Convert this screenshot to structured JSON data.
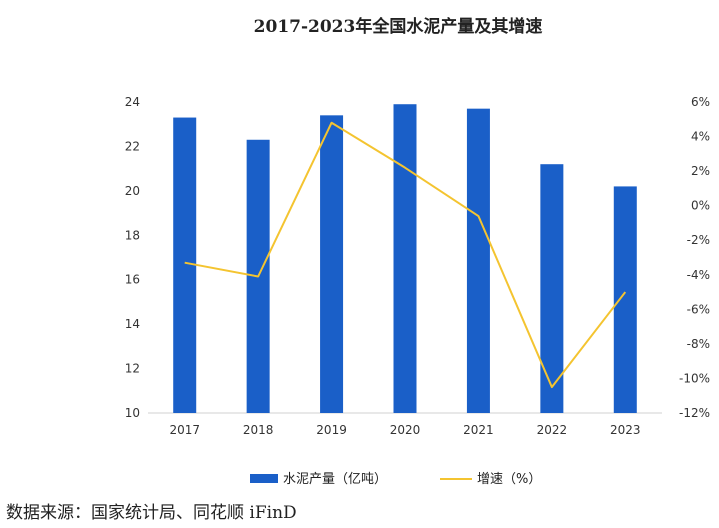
{
  "chart_data": {
    "type": "bar",
    "title": "2017-2023年全国水泥产量及其增速",
    "categories": [
      "2017",
      "2018",
      "2019",
      "2020",
      "2021",
      "2022",
      "2023"
    ],
    "series": [
      {
        "name": "水泥产量（亿吨）",
        "type": "bar",
        "axis": "left",
        "color": "#1a5fc8",
        "values": [
          23.3,
          22.3,
          23.4,
          23.9,
          23.7,
          21.2,
          20.2
        ]
      },
      {
        "name": "增速（%）",
        "type": "line",
        "axis": "right",
        "color": "#f4c430",
        "values": [
          -3.3,
          -4.1,
          4.8,
          2.2,
          -0.6,
          -10.5,
          -5.0
        ]
      }
    ],
    "y_left": {
      "min": 10,
      "max": 24,
      "ticks": [
        10,
        12,
        14,
        16,
        18,
        20,
        22,
        24
      ]
    },
    "y_right": {
      "min": -12,
      "max": 6,
      "ticks": [
        -12,
        -10,
        -8,
        -6,
        -4,
        -2,
        0,
        2,
        4,
        6
      ],
      "tick_labels": [
        "-12%",
        "-10%",
        "-8%",
        "-6%",
        "-4%",
        "-2%",
        "0%",
        "2%",
        "4%",
        "6%"
      ]
    },
    "legend_position": "bottom",
    "grid": false
  },
  "source": "数据来源：国家统计局、同花顺 iFinD"
}
